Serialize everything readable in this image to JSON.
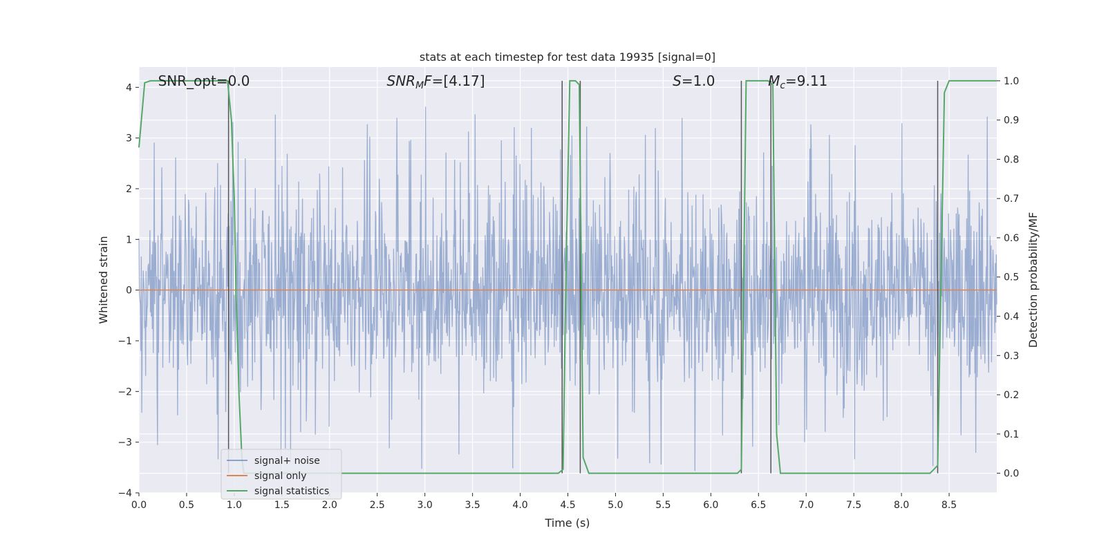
{
  "chart_data": {
    "type": "line",
    "title": "stats at each timestep for test data 19935 [signal=0]",
    "xlabel": "Time (s)",
    "ylabel": "Whitened strain",
    "ylabel_right": "Detection probability/MF",
    "xlim": [
      0,
      9.0
    ],
    "ylim": [
      -4,
      4.4
    ],
    "ylim_right": [
      -0.05,
      1.035
    ],
    "x_ticks": [
      "0.0",
      "0.5",
      "1.0",
      "1.5",
      "2.0",
      "2.5",
      "3.0",
      "3.5",
      "4.0",
      "4.5",
      "5.0",
      "5.5",
      "6.0",
      "6.5",
      "7.0",
      "7.5",
      "8.0",
      "8.5"
    ],
    "x_tick_values": [
      0,
      0.5,
      1,
      1.5,
      2,
      2.5,
      3,
      3.5,
      4,
      4.5,
      5,
      5.5,
      6,
      6.5,
      7,
      7.5,
      8,
      8.5
    ],
    "y_ticks": [
      "4",
      "3",
      "2",
      "1",
      "0",
      "−1",
      "−2",
      "−3",
      "−4"
    ],
    "y_tick_values": [
      4,
      3,
      2,
      1,
      0,
      -1,
      -2,
      -3,
      -4
    ],
    "y_ticks_right": [
      "1.0",
      "0.9",
      "0.8",
      "0.7",
      "0.6",
      "0.5",
      "0.4",
      "0.3",
      "0.2",
      "0.1",
      "0.0"
    ],
    "y_tick_values_right": [
      1.0,
      0.9,
      0.8,
      0.7,
      0.6,
      0.5,
      0.4,
      0.3,
      0.2,
      0.1,
      0.0
    ],
    "grid": true,
    "legend_position": "lower-left",
    "annotations": [
      {
        "text": "SNR_opt=0.0",
        "x": 0.2
      },
      {
        "text": "SNR_MF=[4.17]",
        "x": 2.6
      },
      {
        "text": "S=1.0",
        "x": 5.6
      },
      {
        "text": "M_c=9.11",
        "x": 6.6
      }
    ],
    "series": [
      {
        "name": "signal+ noise",
        "color": "#4c72b0",
        "style": "noise",
        "spread_1sigma": 0.95,
        "typical_peak": 2.4,
        "max_peak": 3.65
      },
      {
        "name": "signal only",
        "color": "#dd8452",
        "values_constant": 0.0
      },
      {
        "name": "signal statistics",
        "color": "#55a868",
        "axis": "right",
        "x": [
          0.0,
          0.06,
          0.12,
          0.9,
          0.93,
          0.97,
          1.0,
          1.02,
          1.05,
          1.08,
          1.1,
          4.4,
          4.45,
          4.48,
          4.52,
          4.58,
          4.62,
          4.66,
          4.72,
          6.28,
          6.32,
          6.37,
          6.6,
          6.65,
          6.69,
          6.73,
          8.3,
          8.38,
          8.45,
          8.5,
          9.0
        ],
        "y": [
          0.83,
          0.995,
          1.0,
          1.0,
          1.0,
          0.9,
          0.7,
          0.45,
          0.2,
          0.04,
          0.0,
          0.0,
          0.01,
          0.5,
          1.0,
          1.0,
          0.99,
          0.04,
          0.0,
          0.0,
          0.01,
          1.0,
          1.0,
          0.99,
          0.1,
          0.0,
          0.0,
          0.02,
          0.97,
          1.0,
          1.0
        ]
      }
    ],
    "vertical_lines_x": [
      0.94,
      4.44,
      4.63,
      6.32,
      6.63,
      8.38
    ]
  }
}
